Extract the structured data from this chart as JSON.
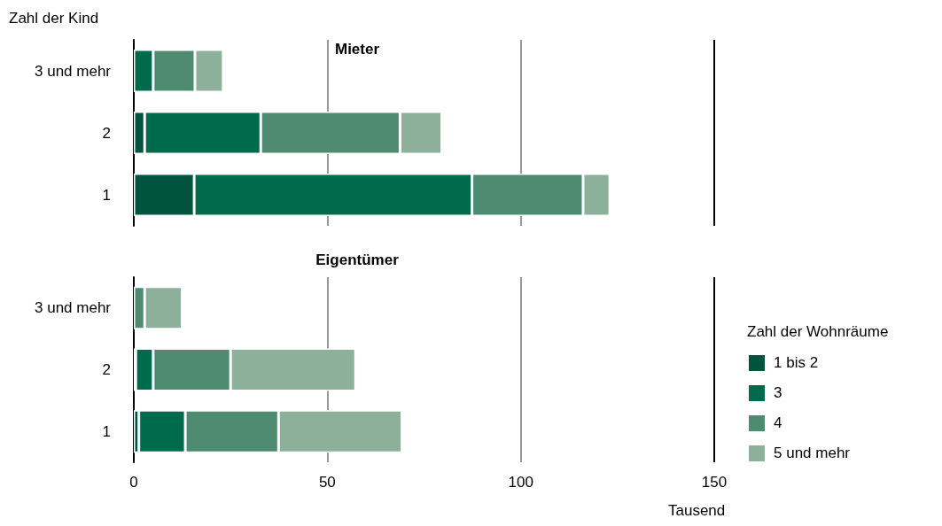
{
  "chart_data": [
    {
      "type": "bar",
      "orientation": "horizontal",
      "stacked": true,
      "title": "Mieter",
      "ylabel": "Zahl der Kind",
      "categories": [
        "3 und mehr",
        "2",
        "1"
      ],
      "xlim": [
        0,
        150
      ],
      "xticks": [
        0,
        50,
        100,
        150
      ],
      "grid": "x",
      "tick_labels": "y",
      "legend": false,
      "series": [
        {
          "color": "#00543f",
          "values": [
            null,
            2.8,
            15.6
          ]
        },
        {
          "color": "#006b4c",
          "values": [
            5.0,
            30.0,
            71.8
          ]
        },
        {
          "color": "#4f8b70",
          "values": [
            10.8,
            36.0,
            28.7
          ]
        },
        {
          "color": "#8cb09a",
          "values": [
            7.3,
            10.8,
            6.9
          ]
        }
      ]
    },
    {
      "type": "bar",
      "orientation": "horizontal",
      "stacked": true,
      "title": "Eigentümer",
      "xlabel": "Tausend",
      "legend_title": "Zahl der Wohnräume",
      "categories": [
        "3 und mehr",
        "2",
        "1"
      ],
      "xlim": [
        0,
        150
      ],
      "xticks": [
        0,
        50,
        100,
        150
      ],
      "grid": "x",
      "legend": "right",
      "series": [
        {
          "name": "1 bis 2",
          "color": "#00543f",
          "values": [
            null,
            0.5,
            1.3
          ]
        },
        {
          "name": "3",
          "color": "#006b4c",
          "values": [
            null,
            4.5,
            12.0
          ]
        },
        {
          "name": "4",
          "color": "#4f8b70",
          "values": [
            2.8,
            20.0,
            24.1
          ]
        },
        {
          "name": "5 und mehr",
          "color": "#8cb09a",
          "values": [
            9.7,
            32.3,
            31.9
          ]
        }
      ]
    }
  ]
}
